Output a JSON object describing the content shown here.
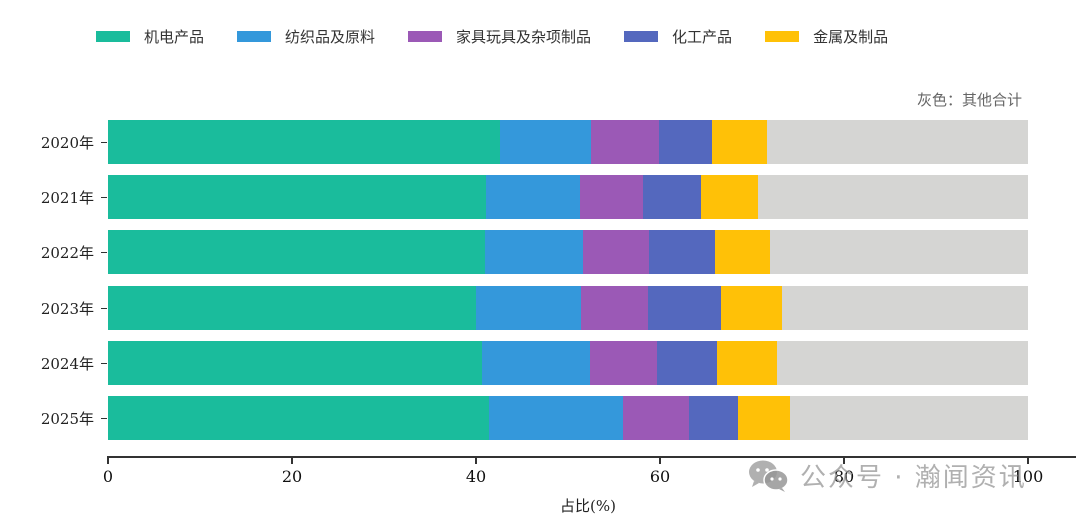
{
  "chart_data": {
    "type": "bar",
    "orientation": "horizontal",
    "stacked": true,
    "title": "",
    "xlabel": "占比(%)",
    "ylabel": "",
    "xlim": [
      0,
      100
    ],
    "xticks": [
      "0",
      "20",
      "40",
      "60",
      "80",
      "100"
    ],
    "categories": [
      "2020年",
      "2021年",
      "2022年",
      "2023年",
      "2024年",
      "2025年"
    ],
    "series": [
      {
        "name": "机电产品",
        "color": "#1ABC9C",
        "values": [
          42.6,
          41.1,
          41.0,
          40.0,
          40.7,
          41.4
        ]
      },
      {
        "name": "纺织品及原料",
        "color": "#3498DB",
        "values": [
          9.9,
          10.2,
          10.6,
          11.4,
          11.7,
          14.6
        ]
      },
      {
        "name": "家具玩具及杂项制品",
        "color": "#9B59B6",
        "values": [
          7.4,
          6.9,
          7.2,
          7.3,
          7.3,
          7.2
        ]
      },
      {
        "name": "化工产品",
        "color": "#5468BE",
        "values": [
          5.8,
          6.3,
          7.2,
          7.9,
          6.5,
          5.3
        ]
      },
      {
        "name": "金属及制品",
        "color": "#FFC107",
        "values": [
          5.9,
          6.2,
          6.0,
          6.7,
          6.5,
          5.6
        ]
      },
      {
        "name": "其他合计",
        "color": "#D5D5D3",
        "values": [
          28.4,
          29.3,
          28.0,
          26.7,
          27.3,
          25.9
        ]
      }
    ],
    "legend_position": "top",
    "grid": false,
    "annotations": [
      "灰色：其他合计"
    ]
  },
  "legend": [
    {
      "label": "机电产品",
      "color": "#1ABC9C"
    },
    {
      "label": "纺织品及原料",
      "color": "#3498DB"
    },
    {
      "label": "家具玩具及杂项制品",
      "color": "#9B59B6"
    },
    {
      "label": "化工产品",
      "color": "#5468BE"
    },
    {
      "label": "金属及制品",
      "color": "#FFC107"
    }
  ],
  "note": "灰色：其他合计",
  "watermark": "公众号 · 瀚闻资讯"
}
